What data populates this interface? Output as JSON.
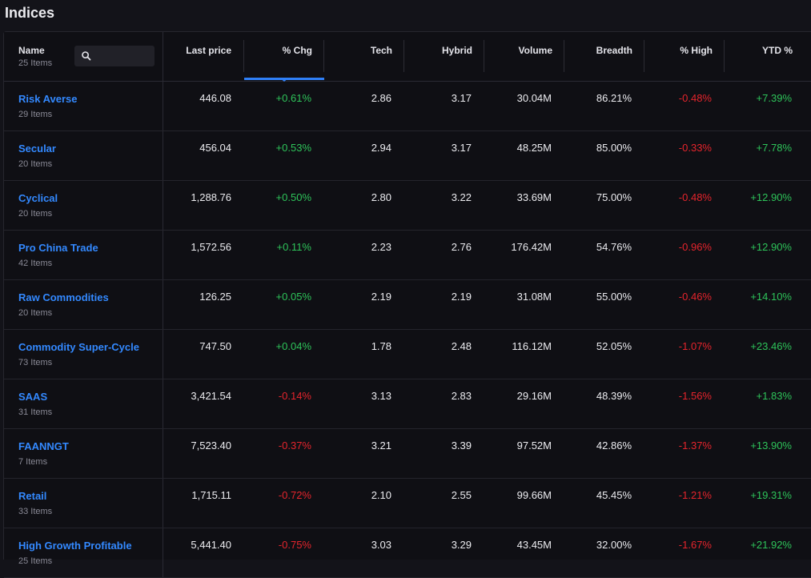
{
  "page_title": "Indices",
  "colors": {
    "positive": "#2ec45a",
    "negative": "#e5242c",
    "link": "#3389ff",
    "accent": "#2f7ff7"
  },
  "header": {
    "name_label": "Name",
    "name_count": "25 Items",
    "search_icon": "search-icon",
    "search_placeholder": "",
    "columns": [
      "Last price",
      "% Chg",
      "Tech",
      "Hybrid",
      "Volume",
      "Breadth",
      "% High",
      "YTD %"
    ],
    "sorted_column": "% Chg"
  },
  "rows": [
    {
      "name": "Risk Averse",
      "items": "29 Items",
      "last_price": "446.08",
      "chg": "+0.61%",
      "tech": "2.86",
      "hybrid": "3.17",
      "volume": "30.04M",
      "breadth": "86.21%",
      "high": "-0.48%",
      "ytd": "+7.39%"
    },
    {
      "name": "Secular",
      "items": "20 Items",
      "last_price": "456.04",
      "chg": "+0.53%",
      "tech": "2.94",
      "hybrid": "3.17",
      "volume": "48.25M",
      "breadth": "85.00%",
      "high": "-0.33%",
      "ytd": "+7.78%"
    },
    {
      "name": "Cyclical",
      "items": "20 Items",
      "last_price": "1,288.76",
      "chg": "+0.50%",
      "tech": "2.80",
      "hybrid": "3.22",
      "volume": "33.69M",
      "breadth": "75.00%",
      "high": "-0.48%",
      "ytd": "+12.90%"
    },
    {
      "name": "Pro China Trade",
      "items": "42 Items",
      "last_price": "1,572.56",
      "chg": "+0.11%",
      "tech": "2.23",
      "hybrid": "2.76",
      "volume": "176.42M",
      "breadth": "54.76%",
      "high": "-0.96%",
      "ytd": "+12.90%"
    },
    {
      "name": "Raw Commodities",
      "items": "20 Items",
      "last_price": "126.25",
      "chg": "+0.05%",
      "tech": "2.19",
      "hybrid": "2.19",
      "volume": "31.08M",
      "breadth": "55.00%",
      "high": "-0.46%",
      "ytd": "+14.10%"
    },
    {
      "name": "Commodity Super-Cycle",
      "items": "73 Items",
      "last_price": "747.50",
      "chg": "+0.04%",
      "tech": "1.78",
      "hybrid": "2.48",
      "volume": "116.12M",
      "breadth": "52.05%",
      "high": "-1.07%",
      "ytd": "+23.46%"
    },
    {
      "name": "SAAS",
      "items": "31 Items",
      "last_price": "3,421.54",
      "chg": "-0.14%",
      "tech": "3.13",
      "hybrid": "2.83",
      "volume": "29.16M",
      "breadth": "48.39%",
      "high": "-1.56%",
      "ytd": "+1.83%"
    },
    {
      "name": "FAANNGT",
      "items": "7 Items",
      "last_price": "7,523.40",
      "chg": "-0.37%",
      "tech": "3.21",
      "hybrid": "3.39",
      "volume": "97.52M",
      "breadth": "42.86%",
      "high": "-1.37%",
      "ytd": "+13.90%"
    },
    {
      "name": "Retail",
      "items": "33 Items",
      "last_price": "1,715.11",
      "chg": "-0.72%",
      "tech": "2.10",
      "hybrid": "2.55",
      "volume": "99.66M",
      "breadth": "45.45%",
      "high": "-1.21%",
      "ytd": "+19.31%"
    },
    {
      "name": "High Growth Profitable",
      "items": "25 Items",
      "last_price": "5,441.40",
      "chg": "-0.75%",
      "tech": "3.03",
      "hybrid": "3.29",
      "volume": "43.45M",
      "breadth": "32.00%",
      "high": "-1.67%",
      "ytd": "+21.92%"
    }
  ]
}
